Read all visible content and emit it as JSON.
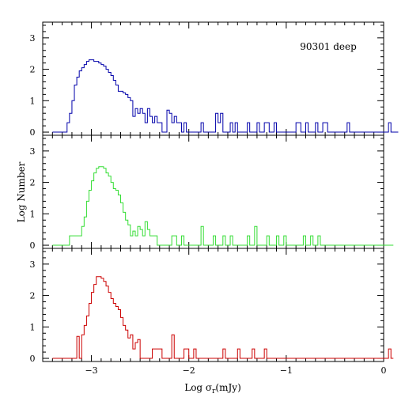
{
  "chart_data": {
    "type": "histogram",
    "annotation": "90301 deep",
    "xlabel": "Log σ",
    "xlabel_sub": "r",
    "xlabel_tail": "(mJy)",
    "ylabel": "Log Number",
    "xlim": [
      -3.5,
      0
    ],
    "ylim": [
      -0.1,
      3.5
    ],
    "x_ticks": [
      -3,
      -2,
      -1,
      0
    ],
    "x_tick_labels": [
      "−3",
      "−2",
      "−1",
      "0"
    ],
    "y_ticks": [
      0,
      1,
      2,
      3
    ],
    "y_tick_labels": [
      "0",
      "1",
      "2",
      "3"
    ],
    "bin_start": -3.4,
    "bin_width": 0.025,
    "panels": [
      {
        "color": "#0000aa",
        "values": [
          0,
          0,
          0,
          0,
          0.0,
          0.0,
          0.3,
          0.6,
          1.0,
          1.5,
          1.75,
          1.95,
          2.05,
          2.15,
          2.25,
          2.3,
          2.3,
          2.25,
          2.25,
          2.2,
          2.15,
          2.1,
          2.0,
          1.9,
          1.8,
          1.65,
          1.5,
          1.3,
          1.3,
          1.25,
          1.2,
          1.1,
          1.0,
          0.5,
          0.75,
          0.6,
          0.75,
          0.6,
          0.3,
          0.75,
          0.5,
          0.3,
          0.5,
          0.3,
          0.3,
          0.0,
          0.0,
          0.7,
          0.6,
          0.3,
          0.5,
          0.3,
          0.3,
          0.0,
          0.3,
          0.0,
          0.0,
          0.0,
          0.0,
          0.0,
          0.0,
          0.3,
          0.0,
          0.0,
          0.0,
          0.0,
          0.0,
          0.6,
          0.3,
          0.6,
          0.0,
          0.0,
          0.0,
          0.3,
          0.0,
          0.3,
          0.0,
          0.0,
          0.0,
          0.0,
          0.3,
          0.0,
          0.0,
          0.0,
          0.3,
          0.0,
          0.0,
          0.3,
          0.3,
          0.0,
          0.0,
          0.3,
          0.0,
          0.0,
          0.0,
          0.0,
          0.0,
          0.0,
          0.0,
          0.0,
          0.3,
          0.3,
          0.0,
          0.0,
          0.3,
          0.0,
          0.0,
          0.0,
          0.3,
          0.0,
          0.0,
          0.3,
          0.3,
          0.0,
          0.0,
          0.0,
          0.0,
          0.0,
          0.0,
          0.0,
          0.0,
          0.3,
          0.0,
          0.0,
          0.0,
          0.0,
          0.0,
          0.0,
          0.0,
          0.0,
          0.0,
          0.0,
          0.0,
          0.0,
          0.0,
          0.0,
          0.0,
          0.0,
          0.3,
          0.0,
          0.0,
          0.0
        ]
      },
      {
        "color": "#33dd33",
        "values": [
          0,
          0,
          0,
          0,
          0.0,
          0.0,
          0.0,
          0.3,
          0.3,
          0.3,
          0.3,
          0.3,
          0.6,
          0.9,
          1.4,
          1.75,
          2.05,
          2.3,
          2.45,
          2.5,
          2.5,
          2.45,
          2.3,
          2.2,
          2.0,
          1.8,
          1.75,
          1.6,
          1.35,
          1.05,
          0.8,
          0.65,
          0.3,
          0.45,
          0.3,
          0.6,
          0.5,
          0.3,
          0.75,
          0.5,
          0.3,
          0.3,
          0.3,
          0.0,
          0.0,
          0.0,
          0.0,
          0.0,
          0.0,
          0.3,
          0.3,
          0.0,
          0.0,
          0.3,
          0.0,
          0.0,
          0.0,
          0.0,
          0.0,
          0.0,
          0.0,
          0.6,
          0.0,
          0.0,
          0.0,
          0.0,
          0.3,
          0.0,
          0.0,
          0.0,
          0.3,
          0.0,
          0.0,
          0.3,
          0.0,
          0.0,
          0.0,
          0.0,
          0.0,
          0.0,
          0.3,
          0.0,
          0.0,
          0.6,
          0.0,
          0.0,
          0.0,
          0.0,
          0.3,
          0.0,
          0.0,
          0.0,
          0.3,
          0.0,
          0.0,
          0.3,
          0.0,
          0.0,
          0.0,
          0.0,
          0.0,
          0.0,
          0.0,
          0.3,
          0.0,
          0.0,
          0.3,
          0.0,
          0.0,
          0.3,
          0.0,
          0.0,
          0.0,
          0.0,
          0.0,
          0.0,
          0.0,
          0.0,
          0.0,
          0.0,
          0.0,
          0.0,
          0.0,
          0.0,
          0.0,
          0.0,
          0.0,
          0.0,
          0.0,
          0.0,
          0.0,
          0.0,
          0.0,
          0.0,
          0.0,
          0.0,
          0.0,
          0.0,
          0.0,
          0.0
        ]
      },
      {
        "color": "#cc0000",
        "values": [
          0,
          0,
          0,
          0,
          0.0,
          0.0,
          0.0,
          0.0,
          0.0,
          0.0,
          0.7,
          0.0,
          0.75,
          1.05,
          1.35,
          1.75,
          2.1,
          2.35,
          2.6,
          2.6,
          2.55,
          2.45,
          2.3,
          2.1,
          1.9,
          1.75,
          1.65,
          1.55,
          1.3,
          1.05,
          0.9,
          0.65,
          0.75,
          0.3,
          0.5,
          0.6,
          0.0,
          0.0,
          0.0,
          0.0,
          0.0,
          0.3,
          0.3,
          0.3,
          0.3,
          0.0,
          0.0,
          0.0,
          0.0,
          0.75,
          0.0,
          0.0,
          0.0,
          0.0,
          0.3,
          0.3,
          0.0,
          0.0,
          0.3,
          0.0,
          0.0,
          0.0,
          0.0,
          0.0,
          0.0,
          0.0,
          0.0,
          0.0,
          0.0,
          0.0,
          0.3,
          0.0,
          0.0,
          0.0,
          0.0,
          0.0,
          0.3,
          0.0,
          0.0,
          0.0,
          0.0,
          0.0,
          0.3,
          0.0,
          0.0,
          0.0,
          0.0,
          0.3,
          0.0,
          0.0,
          0.0,
          0.0,
          0.0,
          0.0,
          0.0,
          0.0,
          0.0,
          0.0,
          0.0,
          0.0,
          0.0,
          0.0,
          0.0,
          0.0,
          0.0,
          0.0,
          0.0,
          0.0,
          0.0,
          0.0,
          0.0,
          0.0,
          0.0,
          0.0,
          0.0,
          0.0,
          0.0,
          0.0,
          0.0,
          0.0,
          0.0,
          0.0,
          0.0,
          0.0,
          0.0,
          0.0,
          0.0,
          0.0,
          0.0,
          0.0,
          0.0,
          0.0,
          0.0,
          0.0,
          0.0,
          0.0,
          0.0,
          0.0,
          0.3,
          0.0
        ]
      }
    ]
  }
}
